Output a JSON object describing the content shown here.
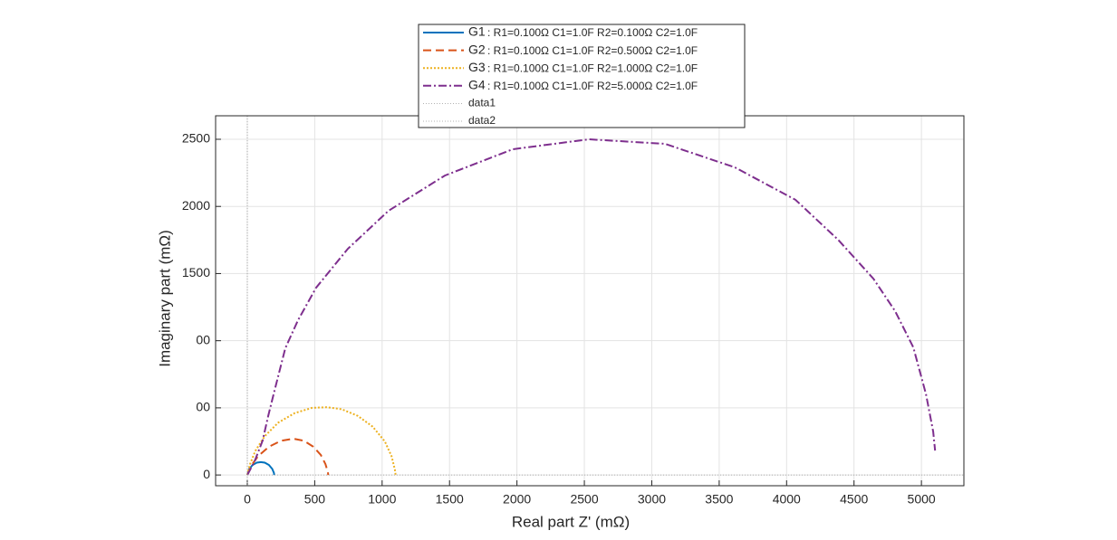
{
  "chart_data": {
    "type": "line",
    "xlabel": "Real part Z' (mΩ)",
    "ylabel": "Imaginary part  (mΩ)",
    "xlim": [
      -235,
      5315
    ],
    "ylim": [
      -80,
      2675
    ],
    "xticks": [
      0,
      500,
      1000,
      1500,
      2000,
      2500,
      3000,
      3500,
      4000,
      4500,
      5000
    ],
    "yticks": [
      0,
      {
        "value": 500,
        "label": "00"
      },
      {
        "value": 1000,
        "label": "00"
      },
      1500,
      2000,
      2500
    ],
    "grid": true,
    "legend": "top",
    "series": [
      {
        "name": "G1",
        "desc": ": R1=0.100Ω C1=1.0F R2=0.100Ω C2=1.0F",
        "color": "#0072bd",
        "dash": "solid",
        "x": [
          0,
          15,
          40,
          70,
          100,
          130,
          160,
          185,
          198,
          200
        ],
        "values": [
          0,
          45,
          75,
          92,
          96,
          92,
          75,
          45,
          15,
          0
        ]
      },
      {
        "name": "G2",
        "desc": ": R1=0.100Ω C1=1.0F R2=0.500Ω C2=1.0F",
        "color": "#d95319",
        "dash": "dashed",
        "x": [
          0,
          30,
          80,
          160,
          250,
          340,
          420,
          490,
          545,
          580,
          598,
          600
        ],
        "values": [
          0,
          70,
          140,
          210,
          255,
          270,
          255,
          210,
          150,
          80,
          20,
          0
        ]
      },
      {
        "name": "G3",
        "desc": ": R1=0.100Ω C1=1.0F R2=1.000Ω C2=1.0F",
        "color": "#edb120",
        "dash": "dotted",
        "x": [
          0,
          20,
          60,
          130,
          230,
          350,
          480,
          590,
          700,
          820,
          930,
          1020,
          1070,
          1095,
          1100
        ],
        "values": [
          0,
          80,
          180,
          290,
          390,
          460,
          500,
          505,
          490,
          440,
          360,
          250,
          140,
          40,
          0
        ]
      },
      {
        "name": "G4",
        "desc": ": R1=0.100Ω C1=1.0F R2=5.000Ω C2=1.0F",
        "color": "#7e2f8e",
        "dash": "dashdot",
        "x": [
          0,
          54,
          114,
          155,
          202,
          282,
          376,
          511,
          746,
          1048,
          1465,
          1969,
          2534,
          3098,
          3616,
          4066,
          4382,
          4644,
          4805,
          4940,
          5034,
          5087,
          5101
        ],
        "values": [
          0,
          101,
          256,
          438,
          627,
          943,
          1152,
          1395,
          1685,
          1968,
          2230,
          2426,
          2500,
          2466,
          2291,
          2049,
          1752,
          1462,
          1220,
          950,
          600,
          323,
          182
        ]
      },
      {
        "name": "data1",
        "color": "#999999",
        "dash": "fine",
        "x": [
          0,
          0
        ],
        "values": [
          -80,
          2675
        ]
      },
      {
        "name": "data2",
        "color": "#999999",
        "dash": "fine",
        "x": [
          0,
          5315
        ],
        "values": [
          0,
          0
        ]
      }
    ]
  }
}
